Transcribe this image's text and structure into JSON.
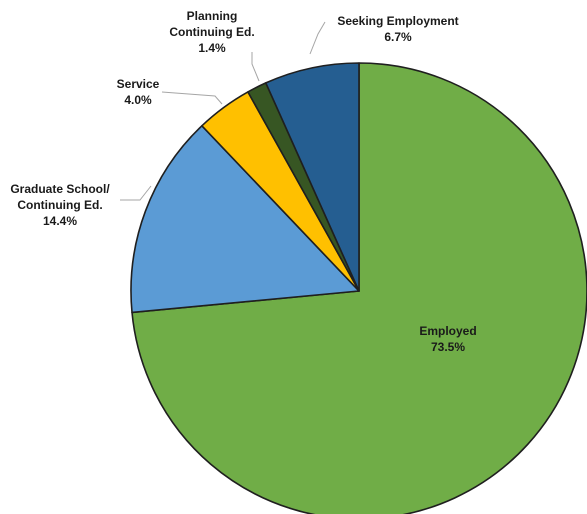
{
  "chart_data": {
    "type": "pie",
    "start_angle_deg": 0,
    "direction": "clockwise",
    "slices": [
      {
        "label_lines": [
          "Employed"
        ],
        "value_text": "73.5%",
        "value": 73.5,
        "color": "#70AD47"
      },
      {
        "label_lines": [
          "Graduate School/",
          "Continuing Ed."
        ],
        "value_text": "14.4%",
        "value": 14.4,
        "color": "#5B9BD5"
      },
      {
        "label_lines": [
          "Service"
        ],
        "value_text": "4.0%",
        "value": 4.0,
        "color": "#FFC000"
      },
      {
        "label_lines": [
          "Planning",
          "Continuing Ed."
        ],
        "value_text": "1.4%",
        "value": 1.4,
        "color": "#375623"
      },
      {
        "label_lines": [
          "Seeking Employment"
        ],
        "value_text": "6.7%",
        "value": 6.7,
        "color": "#255E91"
      }
    ]
  }
}
